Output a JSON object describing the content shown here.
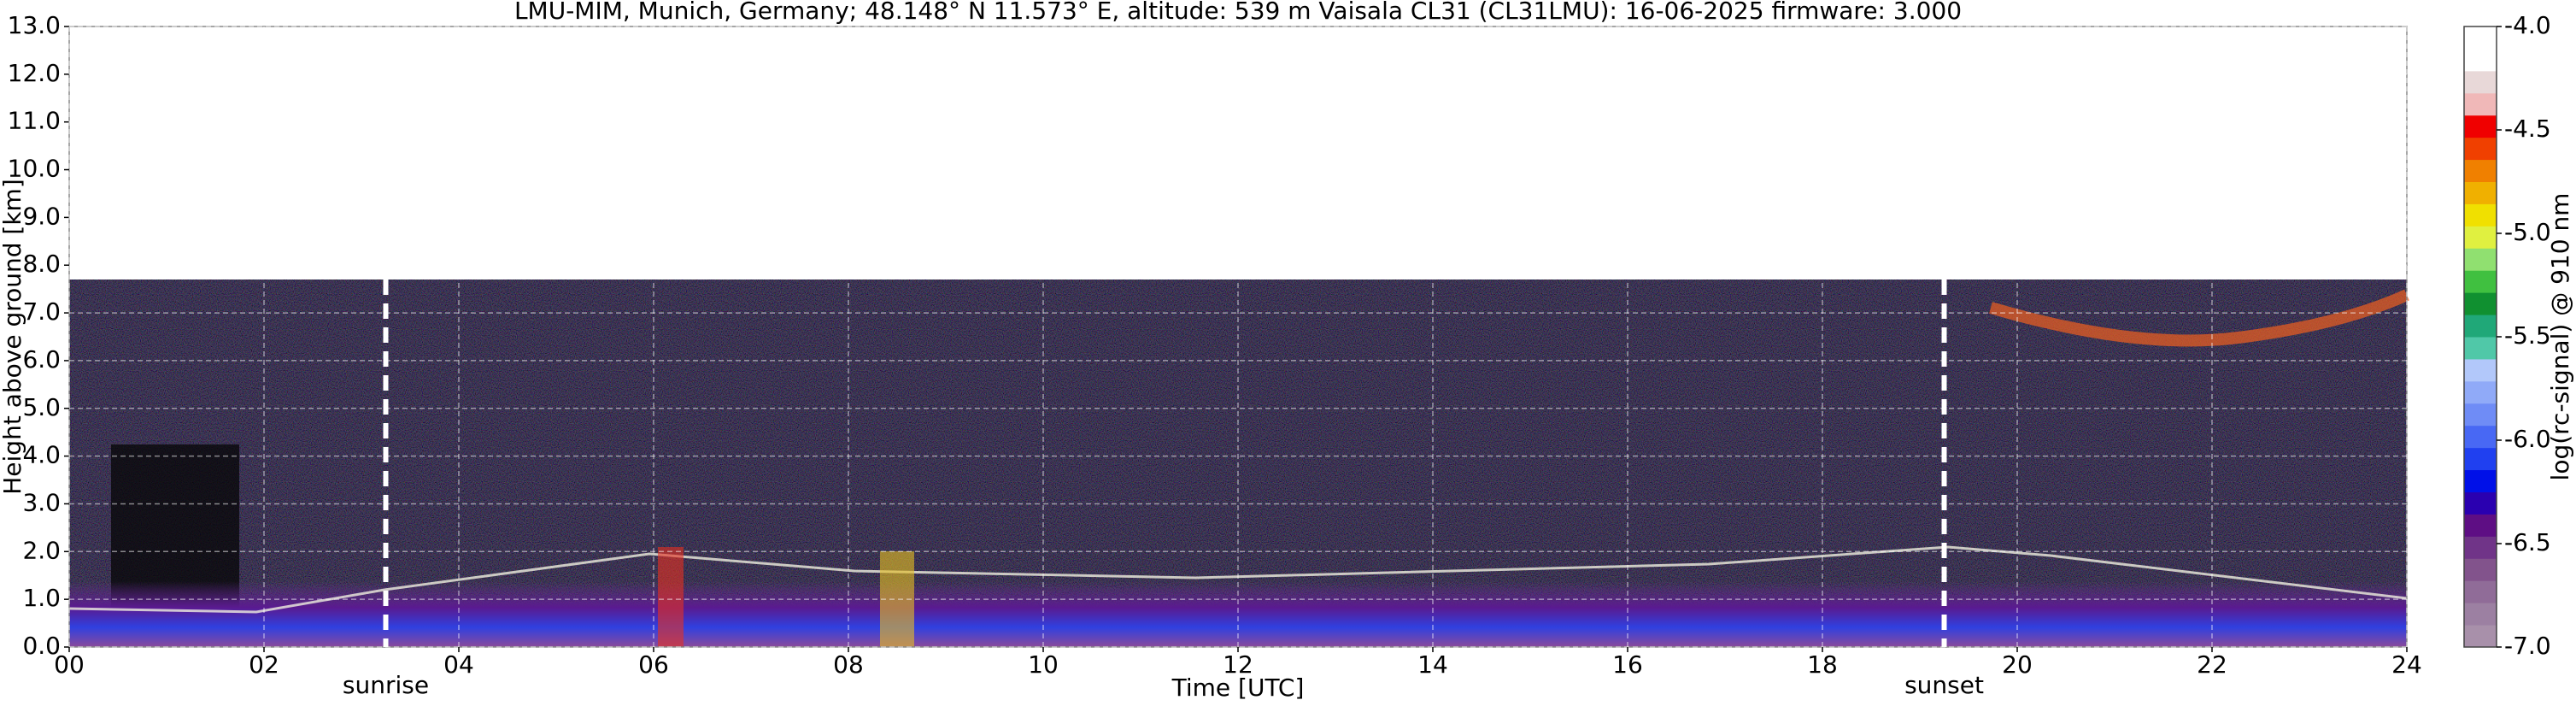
{
  "chart_data": {
    "type": "heatmap",
    "title": "LMU-MIM, Munich, Germany; 48.148° N 11.573° E, altitude: 539 m    Vaisala CL31 (CL31LMU): 16-06-2025    firmware: 3.000",
    "xlabel": "Time [UTC]",
    "ylabel": "Height above ground [km]",
    "xlim": [
      0,
      24
    ],
    "xticks": [
      {
        "value": 0,
        "label": "00"
      },
      {
        "value": 2,
        "label": "02"
      },
      {
        "value": 4,
        "label": "04"
      },
      {
        "value": 6,
        "label": "06"
      },
      {
        "value": 8,
        "label": "08"
      },
      10,
      12,
      14,
      16,
      18,
      20,
      22,
      24
    ],
    "ylim": [
      0,
      13
    ],
    "yticks": [
      {
        "value": 0,
        "label": "0.0"
      },
      {
        "value": 1,
        "label": "1.0"
      },
      {
        "value": 2,
        "label": "2.0"
      },
      {
        "value": 3,
        "label": "3.0"
      },
      {
        "value": 4,
        "label": "4.0"
      },
      {
        "value": 5,
        "label": "5.0"
      },
      {
        "value": 6,
        "label": "6.0"
      },
      {
        "value": 7,
        "label": "7.0"
      },
      {
        "value": 8,
        "label": "8.0"
      },
      {
        "value": 9,
        "label": "9.0"
      },
      {
        "value": 10,
        "label": "10.0"
      },
      {
        "value": 11,
        "label": "11.0"
      },
      {
        "value": 12,
        "label": "12.0"
      },
      {
        "value": 13,
        "label": "13.0"
      }
    ],
    "grid": true,
    "annotations": [
      {
        "text": "sunrise",
        "x": 3.25
      },
      {
        "text": "sunset",
        "x": 19.25
      }
    ],
    "colorbar": {
      "label": "log(rc-signal) @ 910 nm",
      "clim": [
        -7,
        -4
      ],
      "ticks": [
        {
          "value": -7,
          "label": "-7.0"
        },
        {
          "value": -6.5,
          "label": "-6.5"
        },
        {
          "value": -6,
          "label": "-6.0"
        },
        {
          "value": -5.5,
          "label": "-5.5"
        },
        {
          "value": -5,
          "label": "-5.0"
        },
        {
          "value": -4.5,
          "label": "-4.5"
        },
        {
          "value": -4,
          "label": "-4.0"
        }
      ],
      "colors": [
        "#a890aa",
        "#9c80a2",
        "#906c98",
        "#82538c",
        "#703488",
        "#5e0e84",
        "#2a00b0",
        "#0010e8",
        "#2040f0",
        "#4868f4",
        "#6f8cf6",
        "#90aaf8",
        "#b2c8fa",
        "#50c8a8",
        "#20a878",
        "#109030",
        "#40c040",
        "#90e070",
        "#e0f040",
        "#f0e000",
        "#f0b000",
        "#f08000",
        "#f04000",
        "#f00000",
        "#f0b8b8",
        "#e8d8d8",
        "#ffffff",
        "#ffffff"
      ]
    }
  }
}
